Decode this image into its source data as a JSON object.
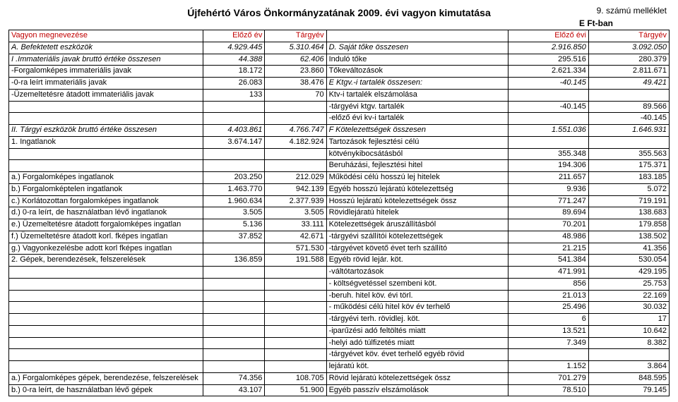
{
  "header": {
    "title": "Újfehértó Város Önkormányzatának 2009. évi vagyon kimutatása",
    "attachment": "9. számú melléklet",
    "unit": "E Ft-ban"
  },
  "columns": {
    "left_label": "Vagyon megnevezése",
    "prev_year": "Előző év",
    "target_year": "Tárgyév",
    "right_label": "",
    "prev_year2": "Előző évi",
    "target_year2": "Tárgyév"
  },
  "rows": [
    {
      "l": "A. Befektetett eszközök",
      "a": "4.929.445",
      "b": "5.310.464",
      "r": "D. Saját tőke összesen",
      "c": "2.916.850",
      "d": "3.092.050",
      "li": true,
      "ri": true
    },
    {
      "l": "I .Immateriális javak bruttó értéke összesen",
      "a": "44.388",
      "b": "62.406",
      "r": "Induló tőke",
      "c": "295.516",
      "d": "280.379",
      "li": true
    },
    {
      "l": "-Forgalomképes immateriális javak",
      "a": "18.172",
      "b": "23.860",
      "r": "Tőkeváltozások",
      "c": "2.621.334",
      "d": "2.811.671"
    },
    {
      "l": "-0-ra leírt immateriális javak",
      "a": "26.083",
      "b": "38.476",
      "r": "E Ktgv.-i tartalék összesen:",
      "c": "-40.145",
      "d": "49.421",
      "ri": true
    },
    {
      "l": "-Üzemeltetésre átadott immateriális javak",
      "a": "133",
      "b": "70",
      "r": "Ktv-i tartalék elszámolása",
      "c": "",
      "d": ""
    },
    {
      "l": "",
      "a": "",
      "b": "",
      "r": "-tárgyévi ktgv. tartalék",
      "c": "-40.145",
      "d": "89.566"
    },
    {
      "l": "",
      "a": "",
      "b": "",
      "r": "-előző évi kv-i tartalék",
      "c": "",
      "d": "-40.145"
    },
    {
      "l": "II. Tárgyi eszközök bruttó értéke összesen",
      "a": "4.403.861",
      "b": "4.766.747",
      "r": "F Kötelezettségek összesen",
      "c": "1.551.036",
      "d": "1.646.931",
      "li": true,
      "ri": true
    },
    {
      "l": "1. Ingatlanok",
      "a": "3.674.147",
      "b": "4.182.924",
      "r": "Tartozások fejlesztési célú",
      "c": "",
      "d": ""
    },
    {
      "l": "",
      "a": "",
      "b": "",
      "r": "kötvénykibocsátásból",
      "c": "355.348",
      "d": "355.563"
    },
    {
      "l": "",
      "a": "",
      "b": "",
      "r": "Beruházási, fejlesztési hitel",
      "c": "194.306",
      "d": "175.371"
    },
    {
      "l": "a.) Forgalomképes ingatlanok",
      "a": "203.250",
      "b": "212.029",
      "r": "Működési célú hosszú lej hitelek",
      "c": "211.657",
      "d": "183.185"
    },
    {
      "l": "b.) Forgalomképtelen ingatlanok",
      "a": "1.463.770",
      "b": "942.139",
      "r": "Egyéb hosszú lejáratú kötelezettség",
      "c": "9.936",
      "d": "5.072"
    },
    {
      "l": "c.) Korlátozottan forgalomképes ingatlanok",
      "a": "1.960.634",
      "b": "2.377.939",
      "r": "Hosszú lejáratú kötelezettségek össz",
      "c": "771.247",
      "d": "719.191"
    },
    {
      "l": "d.) 0-ra leírt, de használatban lévő ingatlanok",
      "a": "3.505",
      "b": "3.505",
      "r": "Rövidlejáratú hitelek",
      "c": "89.694",
      "d": "138.683"
    },
    {
      "l": "e.) Üzemeltetésre átadott forgalomképes ingatlan",
      "a": "5.136",
      "b": "33.111",
      "r": "Kötelezettségek áruszállításból",
      "c": "70.201",
      "d": "179.858"
    },
    {
      "l": "f.) Üzemeltetésre átadott korl. fképes ingatlan",
      "a": "37.852",
      "b": "42.671",
      "r": "-tárgyévi szállítói kötelezettségek",
      "c": "48.986",
      "d": "138.502"
    },
    {
      "l": "g.) Vagyonkezelésbe adott korl fképes ingatlan",
      "a": "",
      "b": "571.530",
      "r": "-tárgyévet követő évet terh szállító",
      "c": "21.215",
      "d": "41.356"
    },
    {
      "l": "2. Gépek, berendezések, felszerelések",
      "a": "136.859",
      "b": "191.588",
      "r": "Egyéb rövid lejár. köt.",
      "c": "541.384",
      "d": "530.054"
    },
    {
      "l": "",
      "a": "",
      "b": "",
      "r": "-váltótartozások",
      "c": "471.991",
      "d": "429.195"
    },
    {
      "l": "",
      "a": "",
      "b": "",
      "r": "- költségvetéssel szembeni köt.",
      "c": "856",
      "d": "25.753"
    },
    {
      "l": "",
      "a": "",
      "b": "",
      "r": "-beruh. hitel köv. évi törl.",
      "c": "21.013",
      "d": "22.169"
    },
    {
      "l": "",
      "a": "",
      "b": "",
      "r": "- működési célú hitel köv év terhelő",
      "c": "25.496",
      "d": "30.032"
    },
    {
      "l": "",
      "a": "",
      "b": "",
      "r": "-tárgyévi  terh. rövidlej. köt.",
      "c": "6",
      "d": "17"
    },
    {
      "l": "",
      "a": "",
      "b": "",
      "r": "-iparűzési adó feltöltés miatt",
      "c": "13.521",
      "d": "10.642"
    },
    {
      "l": "",
      "a": "",
      "b": "",
      "r": "-helyi adó túlfizetés miatt",
      "c": "7.349",
      "d": "8.382"
    },
    {
      "l": "",
      "a": "",
      "b": "",
      "r": "-tárgyévet köv. évet terhelő egyéb rövid",
      "c": "",
      "d": ""
    },
    {
      "l": "",
      "a": "",
      "b": "",
      "r": "lejáratú köt.",
      "c": "1.152",
      "d": "3.864"
    },
    {
      "l": "a.) Forgalomképes gépek, berendezése, felszerelések",
      "a": "74.356",
      "b": "108.705",
      "r": "Rövid lejáratú kötelezettségek össz",
      "c": "701.279",
      "d": "848.595"
    },
    {
      "l": "b.) 0-ra leírt, de használatban lévő gépek",
      "a": "43.107",
      "b": "51.900",
      "r": "Egyéb passzív elszámolások",
      "c": "78.510",
      "d": "79.145"
    }
  ]
}
